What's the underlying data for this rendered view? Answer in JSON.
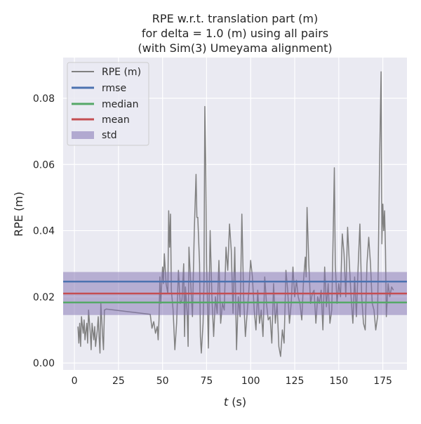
{
  "chart_data": {
    "type": "line",
    "title": [
      "RPE w.r.t. translation part (m)",
      "for delta = 1.0 (m) using all pairs",
      "(with Sim(3) Umeyama alignment)"
    ],
    "xlabel_italic": "t",
    "xlabel_unit": " (s)",
    "ylabel": "RPE (m)",
    "xlim": [
      -6.4,
      188.7
    ],
    "ylim": [
      -0.0021,
      0.0923
    ],
    "xticks": [
      0,
      25,
      50,
      75,
      100,
      125,
      150,
      175
    ],
    "yticks": [
      0.0,
      0.02,
      0.04,
      0.06,
      0.08
    ],
    "ytick_labels": [
      "0.00",
      "0.02",
      "0.04",
      "0.06",
      "0.08"
    ],
    "grid": true,
    "legend_position": "top-left",
    "legend": [
      "RPE (m)",
      "rmse",
      "median",
      "mean",
      "std"
    ],
    "colors": {
      "rpe": "#808080",
      "rmse": "#4c72b0",
      "median": "#55a868",
      "mean": "#c44e52",
      "std": "#8172b2",
      "background": "#eaeaf2"
    },
    "stats": {
      "rmse": 0.0246,
      "median": 0.0183,
      "mean": 0.021,
      "std": 0.0065
    },
    "series": [
      {
        "name": "RPE (m)",
        "points": [
          [
            2,
            0.011
          ],
          [
            2.5,
            0.006
          ],
          [
            3,
            0.012
          ],
          [
            3.5,
            0.005
          ],
          [
            4,
            0.014
          ],
          [
            5,
            0.009
          ],
          [
            5.5,
            0.013
          ],
          [
            6,
            0.007
          ],
          [
            7,
            0.012
          ],
          [
            7.5,
            0.006
          ],
          [
            8,
            0.016
          ],
          [
            9,
            0.009
          ],
          [
            9.5,
            0.004
          ],
          [
            10,
            0.012
          ],
          [
            11,
            0.007
          ],
          [
            11.5,
            0.011
          ],
          [
            12,
            0.005
          ],
          [
            13,
            0.01
          ],
          [
            13.5,
            0.014
          ],
          [
            14,
            0.008
          ],
          [
            14.5,
            0.003
          ],
          [
            15,
            0.018
          ],
          [
            16,
            0.008
          ],
          [
            16.5,
            0.004
          ],
          [
            17,
            0.016
          ],
          [
            18,
            0.0163
          ],
          [
            43,
            0.0147
          ],
          [
            44,
            0.0105
          ],
          [
            45,
            0.0125
          ],
          [
            46,
            0.009
          ],
          [
            47,
            0.011
          ],
          [
            47.5,
            0.007
          ],
          [
            48,
            0.013
          ],
          [
            48.5,
            0.026
          ],
          [
            49,
            0.018
          ],
          [
            50,
            0.029
          ],
          [
            50.5,
            0.024
          ],
          [
            51,
            0.033
          ],
          [
            52,
            0.024
          ],
          [
            53,
            0.021
          ],
          [
            53.5,
            0.046
          ],
          [
            54,
            0.035
          ],
          [
            54.5,
            0.045
          ],
          [
            55,
            0.022
          ],
          [
            56,
            0.016
          ],
          [
            57,
            0.004
          ],
          [
            58,
            0.012
          ],
          [
            59,
            0.028
          ],
          [
            60,
            0.018
          ],
          [
            61,
            0.019
          ],
          [
            62,
            0.03
          ],
          [
            62.5,
            0.008
          ],
          [
            63,
            0.023
          ],
          [
            64,
            0.015
          ],
          [
            64.5,
            0.005
          ],
          [
            65,
            0.035
          ],
          [
            66,
            0.024
          ],
          [
            67,
            0.014
          ],
          [
            68,
            0.04
          ],
          [
            69,
            0.057
          ],
          [
            69.5,
            0.044
          ],
          [
            70,
            0.044
          ],
          [
            71,
            0.03
          ],
          [
            71.5,
            0.008
          ],
          [
            72,
            0.003
          ],
          [
            73,
            0.012
          ],
          [
            73.5,
            0.024
          ],
          [
            74,
            0.0775
          ],
          [
            74.5,
            0.06
          ],
          [
            75,
            0.03
          ],
          [
            76,
            0.0045
          ],
          [
            77,
            0.04
          ],
          [
            78,
            0.02
          ],
          [
            79,
            0.008
          ],
          [
            80,
            0.02
          ],
          [
            81,
            0.015
          ],
          [
            82,
            0.031
          ],
          [
            83,
            0.012
          ],
          [
            84,
            0.018
          ],
          [
            85,
            0.016
          ],
          [
            86,
            0.035
          ],
          [
            87,
            0.028
          ],
          [
            88,
            0.042
          ],
          [
            89,
            0.034
          ],
          [
            90,
            0.015
          ],
          [
            91,
            0.035
          ],
          [
            92,
            0.004
          ],
          [
            93,
            0.02
          ],
          [
            94,
            0.014
          ],
          [
            95,
            0.045
          ],
          [
            96,
            0.02
          ],
          [
            97,
            0.008
          ],
          [
            98,
            0.015
          ],
          [
            99,
            0.022
          ],
          [
            100,
            0.031
          ],
          [
            101,
            0.026
          ],
          [
            102,
            0.016
          ],
          [
            103,
            0.01
          ],
          [
            104,
            0.022
          ],
          [
            105,
            0.012
          ],
          [
            106,
            0.016
          ],
          [
            107,
            0.008
          ],
          [
            108,
            0.026
          ],
          [
            109,
            0.018
          ],
          [
            110,
            0.013
          ],
          [
            111,
            0.014
          ],
          [
            112,
            0.006
          ],
          [
            113,
            0.024
          ],
          [
            114,
            0.012
          ],
          [
            115,
            0.018
          ],
          [
            116,
            0.005
          ],
          [
            117,
            0.002
          ],
          [
            118,
            0.01
          ],
          [
            119,
            0.006
          ],
          [
            120,
            0.028
          ],
          [
            121,
            0.022
          ],
          [
            122,
            0.012
          ],
          [
            123,
            0.018
          ],
          [
            124,
            0.029
          ],
          [
            125,
            0.02
          ],
          [
            126,
            0.025
          ],
          [
            127,
            0.02
          ],
          [
            128,
            0.018
          ],
          [
            129,
            0.013
          ],
          [
            130,
            0.025
          ],
          [
            131,
            0.032
          ],
          [
            131.5,
            0.026
          ],
          [
            132,
            0.047
          ],
          [
            133,
            0.03
          ],
          [
            134,
            0.018
          ],
          [
            135,
            0.021
          ],
          [
            136,
            0.022
          ],
          [
            137,
            0.012
          ],
          [
            138,
            0.02
          ],
          [
            139,
            0.018
          ],
          [
            140,
            0.022
          ],
          [
            141,
            0.01
          ],
          [
            142,
            0.029
          ],
          [
            143,
            0.017
          ],
          [
            144,
            0.024
          ],
          [
            145,
            0.012
          ],
          [
            146,
            0.016
          ],
          [
            147,
            0.044
          ],
          [
            147.5,
            0.059
          ],
          [
            148,
            0.03
          ],
          [
            149,
            0.018
          ],
          [
            150,
            0.024
          ],
          [
            151,
            0.02
          ],
          [
            152,
            0.039
          ],
          [
            153,
            0.033
          ],
          [
            154,
            0.02
          ],
          [
            155,
            0.041
          ],
          [
            156,
            0.03
          ],
          [
            157,
            0.02
          ],
          [
            158,
            0.012
          ],
          [
            159,
            0.026
          ],
          [
            160,
            0.014
          ],
          [
            161,
            0.029
          ],
          [
            162,
            0.042
          ],
          [
            163,
            0.02
          ],
          [
            164,
            0.012
          ],
          [
            165,
            0.01
          ],
          [
            166,
            0.03
          ],
          [
            167,
            0.038
          ],
          [
            168,
            0.03
          ],
          [
            169,
            0.018
          ],
          [
            170,
            0.016
          ],
          [
            171,
            0.01
          ],
          [
            172,
            0.014
          ],
          [
            173,
            0.055
          ],
          [
            174,
            0.088
          ],
          [
            174.5,
            0.036
          ],
          [
            175,
            0.048
          ],
          [
            175.5,
            0.04
          ],
          [
            176,
            0.046
          ],
          [
            176.5,
            0.034
          ],
          [
            177,
            0.014
          ],
          [
            178,
            0.024
          ],
          [
            179,
            0.02
          ],
          [
            180,
            0.023
          ],
          [
            181,
            0.022
          ]
        ]
      }
    ]
  }
}
